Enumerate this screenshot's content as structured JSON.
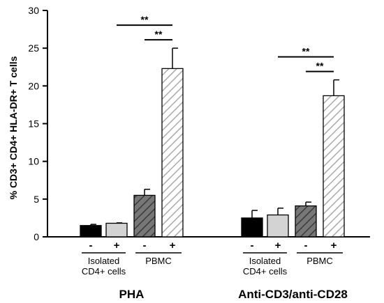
{
  "chart_data": {
    "type": "bar",
    "ylabel": "% CD3+ CD4+ HLA-DR+ T cells",
    "ylim": [
      0,
      30
    ],
    "yticks": [
      0,
      5,
      10,
      15,
      20,
      25,
      30
    ],
    "groups": [
      {
        "name": "PHA",
        "subgroups": [
          {
            "name": "Isolated\nCD4+ cells",
            "bars": [
              {
                "sign": "-",
                "value": 1.5,
                "error": 0.15,
                "fill": "black"
              },
              {
                "sign": "+",
                "value": 1.8,
                "error": 0.05,
                "fill": "lightgray"
              }
            ]
          },
          {
            "name": "PBMC",
            "bars": [
              {
                "sign": "-",
                "value": 5.5,
                "error": 0.8,
                "fill": "darkgray-hatched"
              },
              {
                "sign": "+",
                "value": 22.3,
                "error": 2.7,
                "fill": "white-hatched"
              }
            ]
          }
        ],
        "significance": [
          {
            "from": 1,
            "to": 3,
            "label": "**"
          },
          {
            "from": 2,
            "to": 3,
            "label": "**"
          }
        ]
      },
      {
        "name": "Anti-CD3/anti-CD28",
        "subgroups": [
          {
            "name": "Isolated\nCD4+ cells",
            "bars": [
              {
                "sign": "-",
                "value": 2.5,
                "error": 1.0,
                "fill": "black"
              },
              {
                "sign": "+",
                "value": 2.9,
                "error": 0.9,
                "fill": "lightgray"
              }
            ]
          },
          {
            "name": "PBMC",
            "bars": [
              {
                "sign": "-",
                "value": 4.1,
                "error": 0.5,
                "fill": "darkgray-hatched"
              },
              {
                "sign": "+",
                "value": 18.7,
                "error": 2.1,
                "fill": "white-hatched"
              }
            ]
          }
        ],
        "significance": [
          {
            "from": 1,
            "to": 3,
            "label": "**"
          },
          {
            "from": 2,
            "to": 3,
            "label": "**"
          }
        ]
      }
    ]
  },
  "colors": {
    "black": "#000000",
    "lightgray": "#d3d3d3",
    "darkgray": "#777777",
    "hatch_light": "#aaaaaa"
  }
}
